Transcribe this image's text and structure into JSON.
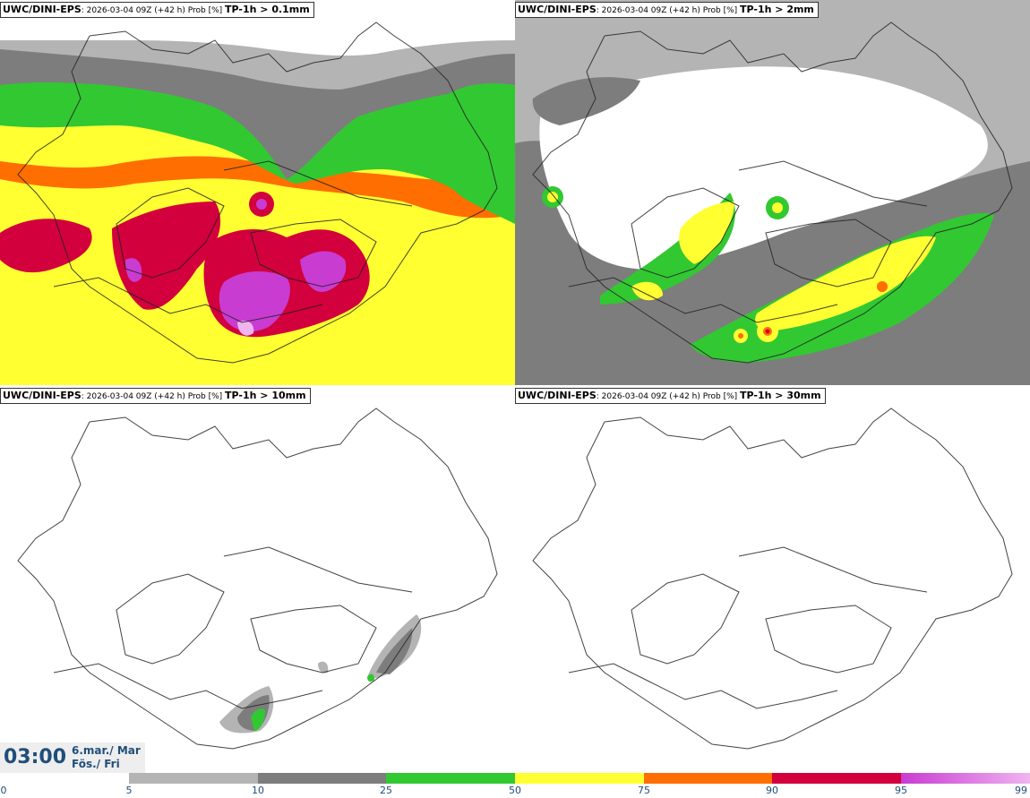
{
  "panels": [
    {
      "model": "UWC/DINI-EPS",
      "info": ": 2026-03-04 09Z (+42 h) Prob [%] ",
      "threshold": "TP-1h > 0.1mm"
    },
    {
      "model": "UWC/DINI-EPS",
      "info": ": 2026-03-04 09Z (+42 h) Prob [%] ",
      "threshold": "TP-1h > 2mm"
    },
    {
      "model": "UWC/DINI-EPS",
      "info": ": 2026-03-04 09Z (+42 h) Prob [%] ",
      "threshold": "TP-1h > 10mm"
    },
    {
      "model": "UWC/DINI-EPS",
      "info": ": 2026-03-04 09Z (+42 h) Prob [%] ",
      "threshold": "TP-1h > 30mm"
    }
  ],
  "valid_time": {
    "time": "03:00",
    "date_line1": "6.mar./ Mar",
    "date_line2": "Fös./ Fri"
  },
  "colorbar": {
    "ticks": [
      "0",
      "5",
      "10",
      "25",
      "50",
      "75",
      "90",
      "95",
      "99"
    ],
    "colors": [
      "#ffffff",
      "#b4b4b4",
      "#7d7d7d",
      "#32c832",
      "#ffff32",
      "#ff6e00",
      "#d2003c",
      "#c83cd2",
      "#f0b4f0"
    ]
  }
}
